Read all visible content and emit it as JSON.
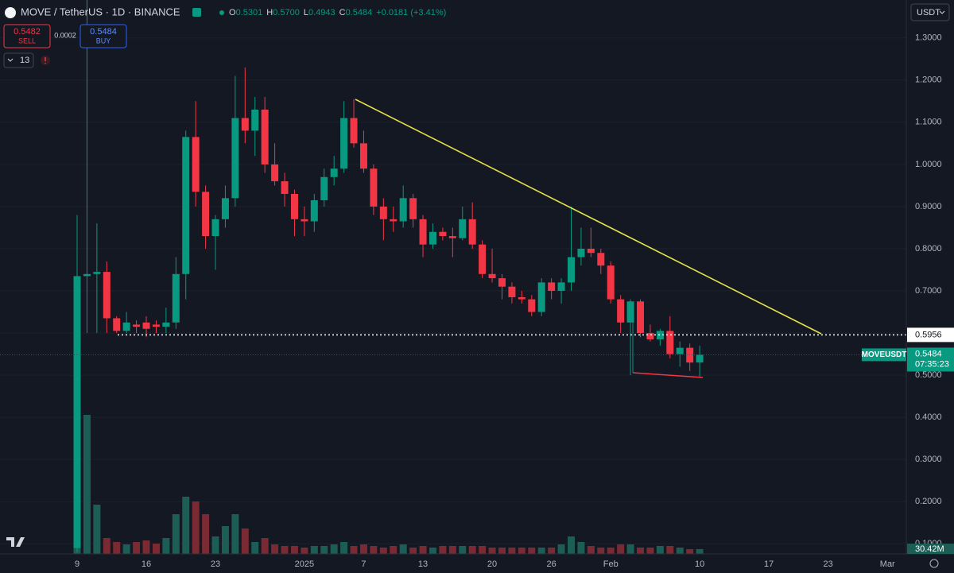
{
  "chart_data": {
    "type": "candlestick",
    "header": {
      "symbol": "MOVE / TetherUS · 1D · BINANCE",
      "ohlc": [
        {
          "key": "O",
          "text": "0.5301"
        },
        {
          "key": "H",
          "text": "0.5700"
        },
        {
          "key": "L",
          "text": "0.4943"
        },
        {
          "key": "C",
          "text": "0.5484"
        }
      ],
      "change": "+0.0181 (+3.41%)",
      "sell_price": "0.5482",
      "sell_label": "SELL",
      "spread": "0.0002",
      "buy_price": "0.5484",
      "buy_label": "BUY",
      "indicator_count": "13"
    },
    "currency": "USDT",
    "categories": [
      "9",
      null,
      null,
      null,
      null,
      null,
      null,
      "16",
      null,
      null,
      null,
      null,
      null,
      null,
      "23",
      null,
      null,
      null,
      null,
      null,
      null,
      null,
      null,
      "2025",
      null,
      null,
      null,
      null,
      null,
      "7",
      null,
      null,
      null,
      null,
      null,
      "13",
      null,
      null,
      null,
      null,
      null,
      null,
      "20",
      null,
      null,
      null,
      null,
      null,
      "26",
      null,
      null,
      null,
      null,
      null,
      "Feb",
      null,
      null,
      null,
      null,
      null,
      null,
      null,
      null,
      "10",
      null,
      null,
      null,
      null,
      null,
      null,
      "17",
      null,
      null,
      null,
      null,
      null,
      "23",
      null,
      null,
      null,
      null,
      null,
      "Mar",
      null
    ],
    "open": [
      0.09,
      0.735,
      0.74,
      0.745,
      0.635,
      0.605,
      0.62,
      0.625,
      0.62,
      0.615,
      0.625,
      0.74,
      1.065,
      0.935,
      0.83,
      0.87,
      0.92,
      1.11,
      1.08,
      1.13,
      1.0,
      0.96,
      0.93,
      0.87,
      0.865,
      0.915,
      0.97,
      0.99,
      1.11,
      1.05,
      0.99,
      0.9,
      0.87,
      0.865,
      0.92,
      0.87,
      0.81,
      0.84,
      0.83,
      0.825,
      0.87,
      0.81,
      0.74,
      0.73,
      0.71,
      0.685,
      0.68,
      0.65,
      0.72,
      0.7,
      0.72,
      0.78,
      0.8,
      0.79,
      0.76,
      0.68,
      0.625,
      0.675,
      0.6,
      0.585,
      0.605,
      0.55,
      0.565,
      0.5301,
      null,
      null,
      null,
      null,
      null,
      null,
      null,
      null,
      null,
      null,
      null,
      null,
      null,
      null,
      null,
      null,
      null,
      null,
      null,
      null
    ],
    "high": [
      0.88,
      1.39,
      0.86,
      0.77,
      0.64,
      0.65,
      0.63,
      0.64,
      0.63,
      0.66,
      0.78,
      1.08,
      1.15,
      0.95,
      0.88,
      0.95,
      1.21,
      1.23,
      1.16,
      1.16,
      1.05,
      0.98,
      0.94,
      0.9,
      0.93,
      0.99,
      1.02,
      1.15,
      1.155,
      1.08,
      1.0,
      0.92,
      0.9,
      0.95,
      0.93,
      0.88,
      0.86,
      0.85,
      0.85,
      0.9,
      0.91,
      0.82,
      0.8,
      0.74,
      0.72,
      0.7,
      0.69,
      0.73,
      0.73,
      0.73,
      0.9,
      0.85,
      0.85,
      0.8,
      0.77,
      0.69,
      0.68,
      0.68,
      0.62,
      0.61,
      0.64,
      0.58,
      0.575,
      0.57,
      null,
      null,
      null,
      null,
      null,
      null,
      null,
      null,
      null,
      null,
      null,
      null,
      null,
      null,
      null,
      null,
      null,
      null,
      null,
      null
    ],
    "low": [
      0.08,
      0.6,
      0.6,
      0.6,
      0.6,
      0.6,
      0.6,
      0.59,
      0.6,
      0.6,
      0.61,
      0.68,
      0.9,
      0.8,
      0.75,
      0.85,
      0.9,
      1.05,
      1.02,
      0.98,
      0.95,
      0.9,
      0.83,
      0.83,
      0.84,
      0.9,
      0.95,
      0.98,
      1.04,
      0.98,
      0.88,
      0.82,
      0.84,
      0.85,
      0.85,
      0.78,
      0.8,
      0.82,
      0.78,
      0.82,
      0.8,
      0.73,
      0.72,
      0.68,
      0.67,
      0.67,
      0.64,
      0.64,
      0.68,
      0.67,
      0.7,
      0.76,
      0.78,
      0.74,
      0.67,
      0.6,
      0.5,
      0.59,
      0.58,
      0.57,
      0.54,
      0.52,
      0.51,
      0.4943,
      null,
      null,
      null,
      null,
      null,
      null,
      null,
      null,
      null,
      null,
      null,
      null,
      null,
      null,
      null,
      null,
      null,
      null,
      null,
      null
    ],
    "close": [
      0.735,
      0.74,
      0.745,
      0.635,
      0.605,
      0.625,
      0.615,
      0.61,
      0.615,
      0.625,
      0.74,
      1.065,
      0.935,
      0.83,
      0.87,
      0.92,
      1.11,
      1.08,
      1.13,
      1.0,
      0.96,
      0.93,
      0.87,
      0.865,
      0.915,
      0.97,
      0.99,
      1.11,
      1.05,
      0.99,
      0.9,
      0.87,
      0.865,
      0.92,
      0.87,
      0.81,
      0.84,
      0.83,
      0.825,
      0.87,
      0.81,
      0.74,
      0.73,
      0.71,
      0.685,
      0.68,
      0.65,
      0.72,
      0.7,
      0.72,
      0.78,
      0.8,
      0.79,
      0.76,
      0.68,
      0.625,
      0.675,
      0.6,
      0.585,
      0.605,
      0.55,
      0.565,
      0.53,
      0.5484,
      null,
      null,
      null,
      null,
      null,
      null,
      null,
      null,
      null,
      null,
      null,
      null,
      null,
      null,
      null,
      null,
      null,
      null,
      null,
      null
    ],
    "volume": [
      1335,
      875,
      310,
      100,
      75,
      60,
      75,
      85,
      65,
      100,
      250,
      360,
      330,
      250,
      110,
      175,
      250,
      160,
      75,
      100,
      60,
      50,
      50,
      40,
      50,
      50,
      60,
      75,
      50,
      60,
      50,
      40,
      50,
      60,
      40,
      50,
      40,
      50,
      50,
      50,
      50,
      50,
      40,
      40,
      40,
      40,
      40,
      40,
      40,
      60,
      110,
      75,
      50,
      40,
      40,
      60,
      60,
      40,
      40,
      50,
      50,
      40,
      30,
      30.42,
      null,
      null,
      null,
      null,
      null,
      null,
      null,
      null,
      null,
      null,
      null,
      null,
      null,
      null,
      null,
      null,
      null,
      null,
      null,
      null
    ],
    "volume_label": "30.42M",
    "up_color": "#089981",
    "down_color": "#f23645",
    "up_volume_color": "#1c5d55",
    "down_volume_color": "#7a2a33",
    "ylim": [
      0.076,
      1.39
    ],
    "yticks": [
      {
        "value": 0.1,
        "label": "0.1000"
      },
      {
        "value": 0.2,
        "label": "0.2000"
      },
      {
        "value": 0.3,
        "label": "0.3000"
      },
      {
        "value": 0.4,
        "label": "0.4000"
      },
      {
        "value": 0.5,
        "label": "0.5000"
      },
      {
        "value": 0.6,
        "label": "0.6000"
      },
      {
        "value": 0.7,
        "label": "0.7000"
      },
      {
        "value": 0.8,
        "label": "0.8000"
      },
      {
        "value": 0.9,
        "label": "0.9000"
      },
      {
        "value": 1.0,
        "label": "1.0000"
      },
      {
        "value": 1.1,
        "label": "1.1000"
      },
      {
        "value": 1.2,
        "label": "1.2000"
      },
      {
        "value": 1.3,
        "label": "1.3000"
      }
    ],
    "grid": true,
    "horizontal_line": {
      "value": 0.5956,
      "label": "0.5956"
    },
    "last_price": {
      "value": 0.5484,
      "label": "0.5484",
      "symbol": "MOVEUSDT",
      "countdown": "07:35:23"
    }
  }
}
